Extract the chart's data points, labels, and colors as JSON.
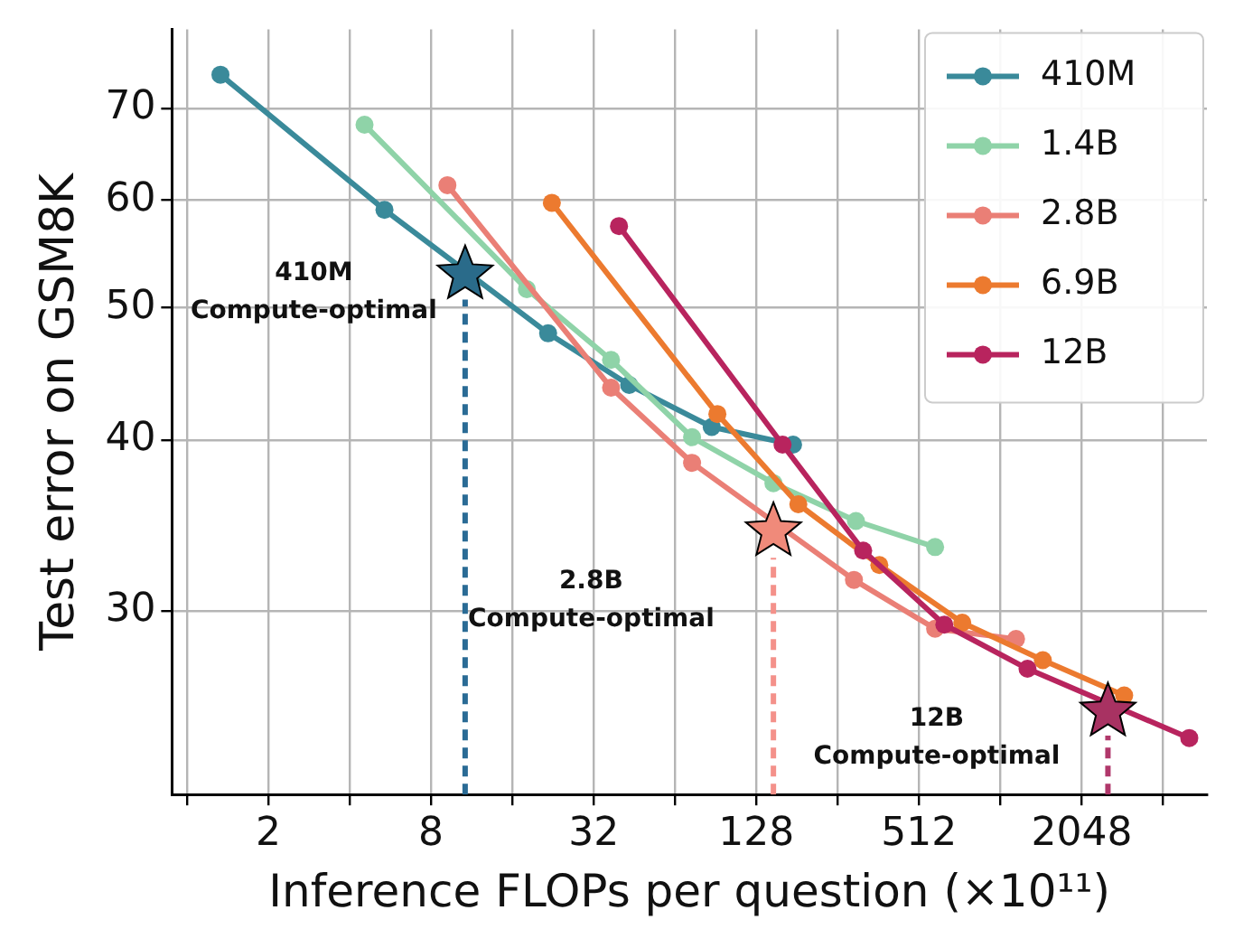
{
  "chart_data": {
    "type": "line",
    "xlabel": "Inference FLOPs per question (×10¹¹)",
    "ylabel": "Test error on GSM8K",
    "log": "xy",
    "grid": true,
    "legend": "top right",
    "line_style": "solid",
    "xlim": [
      0.88,
      5950
    ],
    "ylim": [
      22,
      80
    ],
    "xticks": [
      {
        "value": 1,
        "label": null
      },
      2,
      {
        "value": 4,
        "label": null
      },
      8,
      {
        "value": 16,
        "label": null
      },
      32,
      {
        "value": 64,
        "label": null
      },
      128,
      {
        "value": 256,
        "label": null
      },
      512,
      {
        "value": 1024,
        "label": null
      },
      2048,
      {
        "value": 4096,
        "label": null
      }
    ],
    "yticks": [
      30,
      40,
      50,
      60,
      70
    ],
    "series": [
      {
        "name": "410M",
        "marker": "circle",
        "color": "#3a8a9a",
        "x": [
          1.33,
          5.38,
          21.7,
          43.3,
          87.5,
          175
        ],
        "values": [
          74.1,
          59.0,
          47.9,
          43.9,
          40.9,
          39.7
        ]
      },
      {
        "name": "1.4B",
        "marker": "circle",
        "color": "#8fd3a8",
        "x": [
          4.54,
          18.1,
          37.1,
          74,
          148,
          299,
          587
        ],
        "values": [
          68.1,
          51.6,
          45.8,
          40.2,
          37.2,
          34.9,
          33.4
        ]
      },
      {
        "name": "2.8B",
        "marker": "circle",
        "color": "#ea7f76",
        "x": [
          9.2,
          37.1,
          74,
          294,
          587,
          1170
        ],
        "values": [
          61.5,
          43.7,
          38.5,
          31.6,
          29.1,
          28.6
        ]
      },
      {
        "name": "6.9B",
        "marker": "circle",
        "color": "#ec7a2f",
        "x": [
          22.4,
          91.8,
          183,
          365,
          740,
          1470,
          2940
        ],
        "values": [
          59.7,
          41.8,
          35.9,
          32.4,
          29.4,
          27.6,
          26.0
        ]
      },
      {
        "name": "12B",
        "marker": "circle",
        "color": "#b8245e",
        "x": [
          39.7,
          160,
          318,
          635,
          1290,
          5120
        ],
        "values": [
          57.4,
          39.7,
          33.2,
          29.3,
          27.2,
          24.2
        ]
      },
      {
        "type": "line",
        "color": "#2a6b95",
        "line_style": "dashed",
        "x": [
          10.7,
          10.7
        ],
        "values": [
          22,
          50.7
        ]
      },
      {
        "type": "line",
        "color": "#f4918a",
        "line_style": "dashed",
        "x": [
          148,
          148
        ],
        "values": [
          22,
          32.8
        ]
      },
      {
        "type": "line",
        "color": "#b0386b",
        "line_style": "dashed",
        "x": [
          2560,
          2560
        ],
        "values": [
          22,
          24.3
        ]
      },
      {
        "type": "scatter",
        "marker": "star",
        "colors": [
          "#2a6b8a",
          "#f08a7a",
          "#a83262"
        ],
        "x": [
          10.7,
          148,
          2560
        ],
        "values": [
          52.9,
          34.3,
          25.3
        ]
      }
    ],
    "annotations": [
      "410M\nCompute-optimal",
      "2.8B\nCompute-optimal",
      "12B\nCompute-optimal"
    ]
  }
}
